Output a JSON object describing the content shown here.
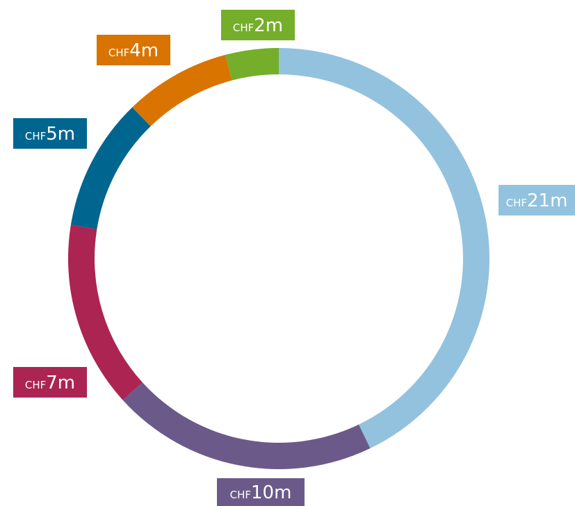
{
  "chart_data": {
    "type": "pie",
    "donut": true,
    "categories": [
      "",
      "",
      "",
      "",
      "",
      ""
    ],
    "currency": "CHF",
    "unit": "m",
    "values": [
      21,
      10,
      7,
      5,
      4,
      2
    ],
    "colors": [
      "#92c2de",
      "#6b5a89",
      "#ab2452",
      "#00668f",
      "#d97400",
      "#75ae2a"
    ],
    "title": "",
    "legend": "none"
  }
}
